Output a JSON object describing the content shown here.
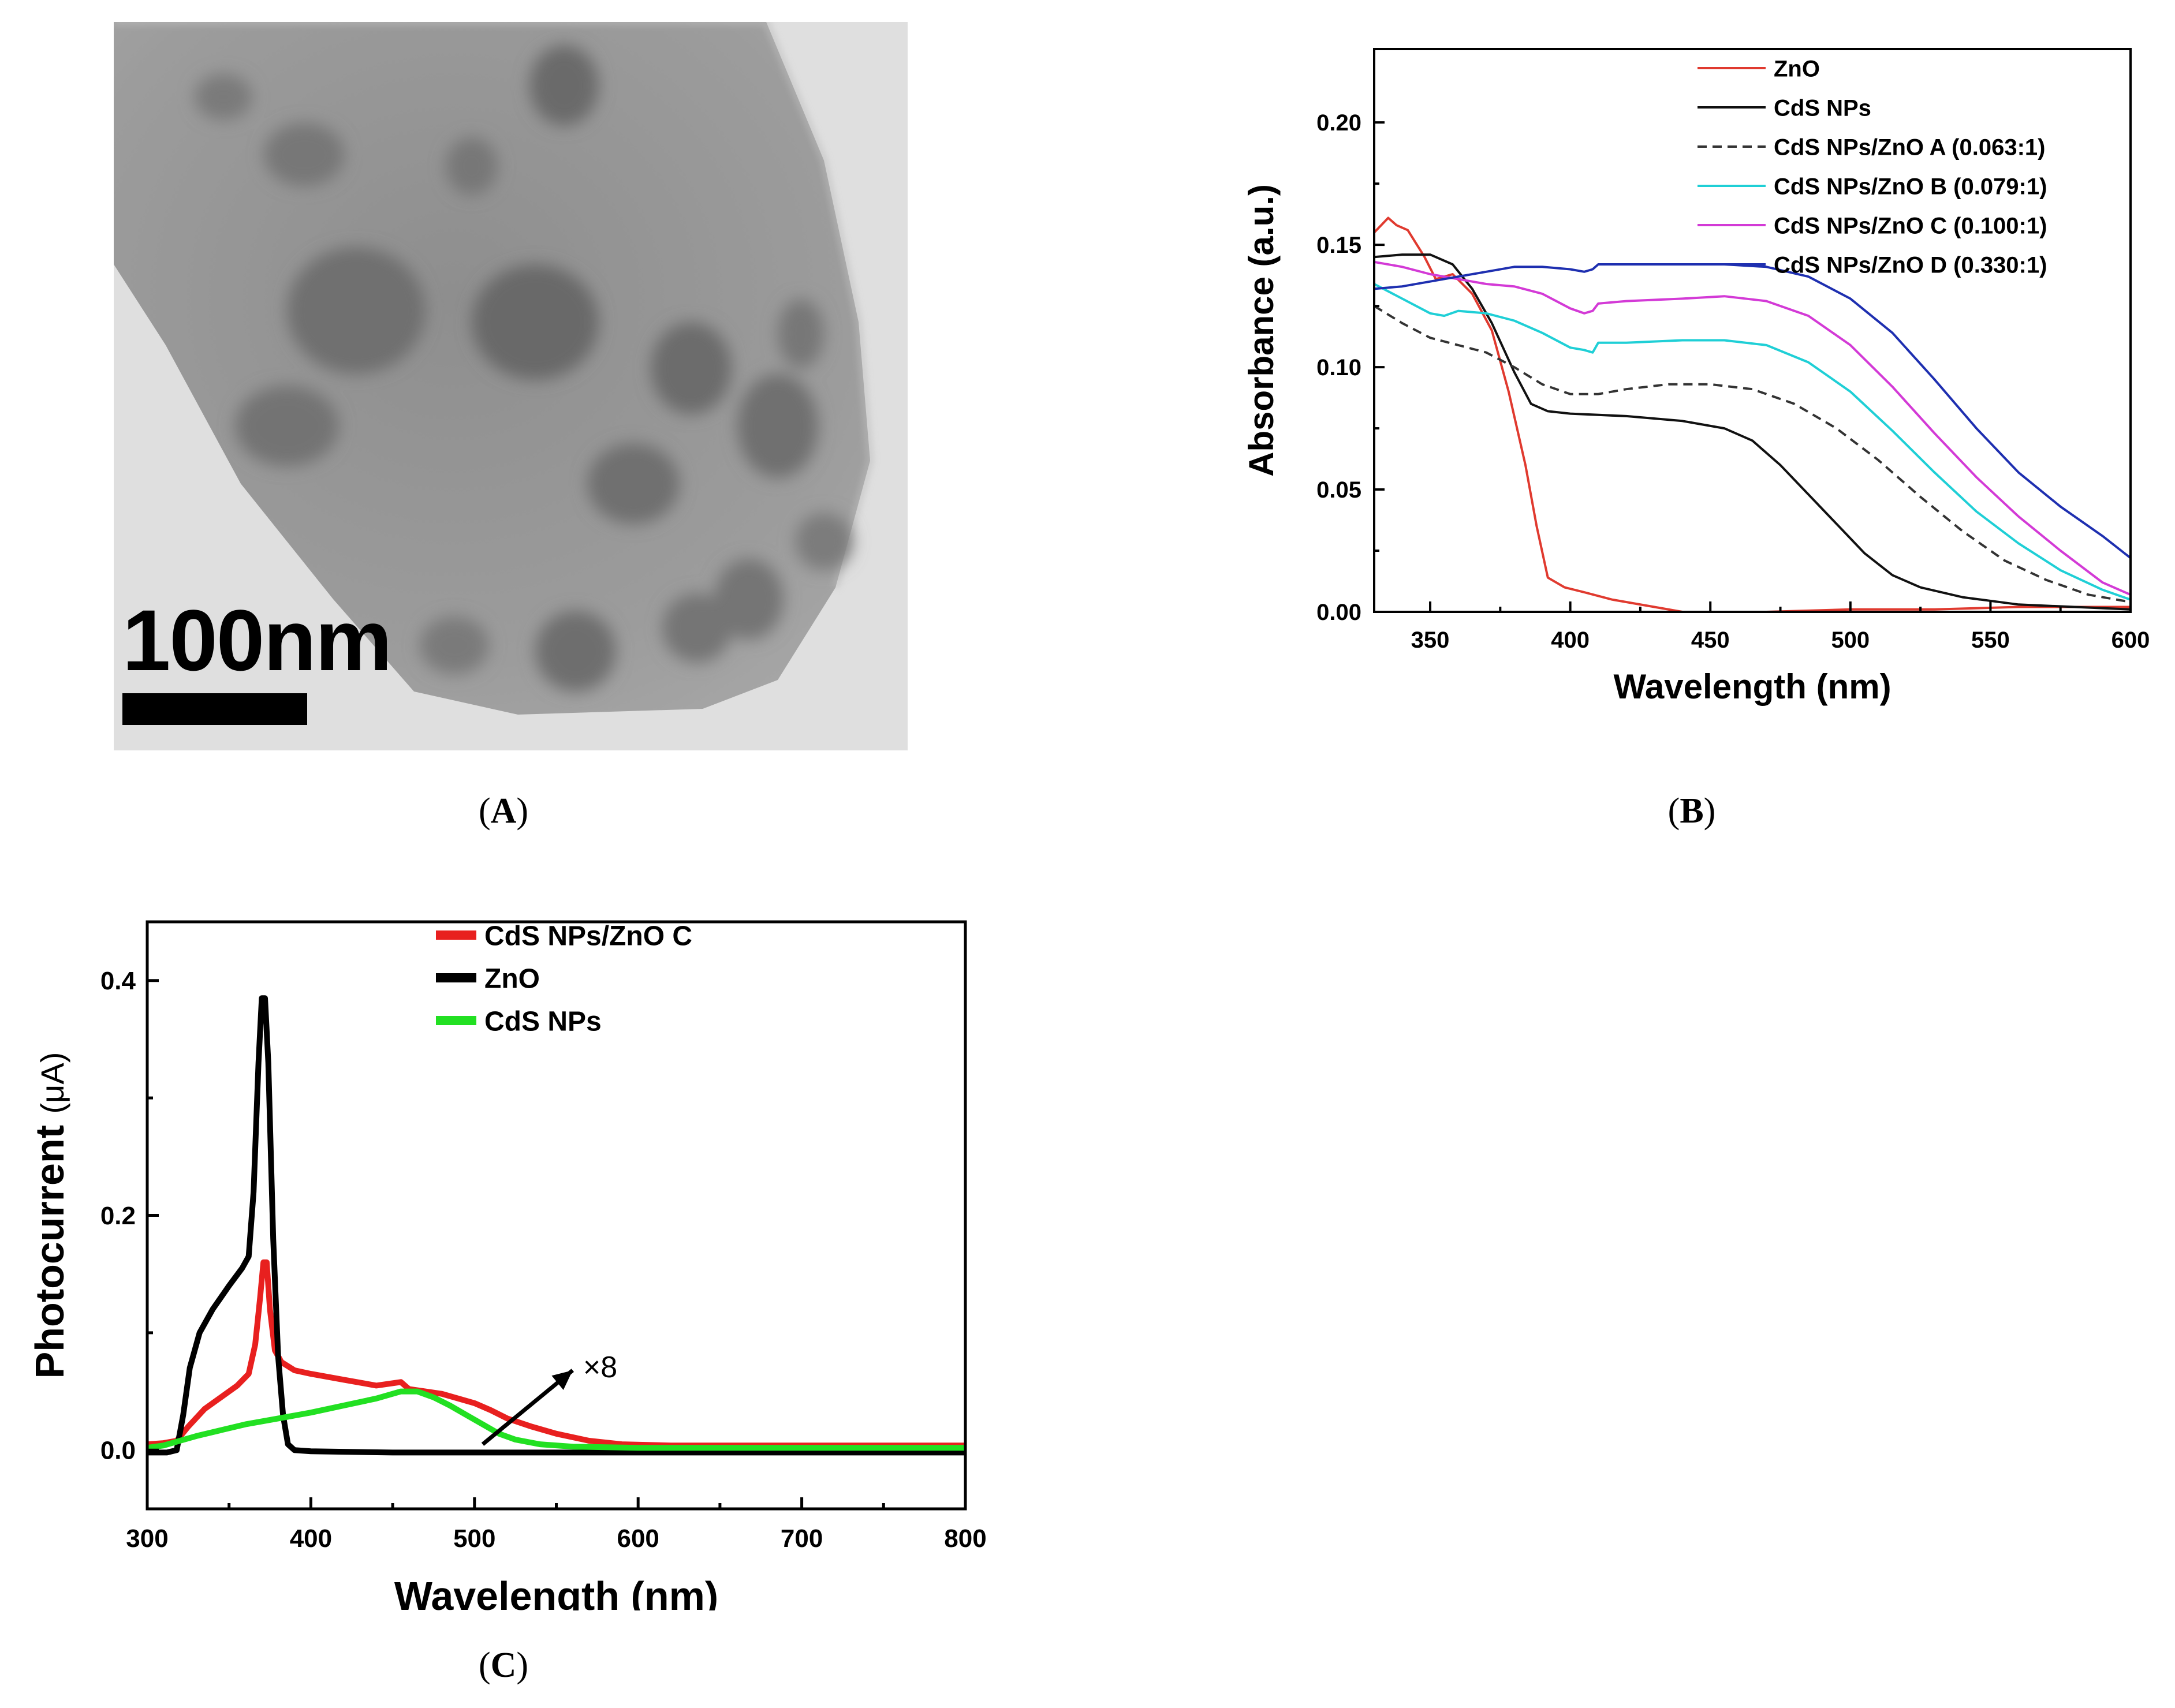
{
  "panels": {
    "A": {
      "caption_letter": "A",
      "scale_bar_label": "100nm"
    },
    "B": {
      "caption_letter": "B"
    },
    "C": {
      "caption_letter": "C"
    }
  },
  "chart_data": [
    {
      "id": "B",
      "type": "line",
      "title": "",
      "xlabel": "Wavelength (nm)",
      "ylabel": "Absorbance (a.u.)",
      "xlim": [
        330,
        600
      ],
      "ylim": [
        0,
        0.23
      ],
      "xticks": [
        350,
        400,
        450,
        500,
        550,
        600
      ],
      "yticks": [
        0.0,
        0.05,
        0.1,
        0.15,
        0.2
      ],
      "ytick_labels": [
        "0.00",
        "0.05",
        "0.10",
        "0.15",
        "0.20"
      ],
      "legend_position": "top-right",
      "series": [
        {
          "name": "ZnO",
          "color": "#e03a2f",
          "dash": false,
          "points": [
            [
              330,
              0.155
            ],
            [
              335,
              0.161
            ],
            [
              338,
              0.158
            ],
            [
              342,
              0.156
            ],
            [
              348,
              0.145
            ],
            [
              352,
              0.136
            ],
            [
              358,
              0.138
            ],
            [
              365,
              0.13
            ],
            [
              372,
              0.115
            ],
            [
              378,
              0.09
            ],
            [
              384,
              0.06
            ],
            [
              388,
              0.035
            ],
            [
              392,
              0.014
            ],
            [
              398,
              0.01
            ],
            [
              405,
              0.008
            ],
            [
              415,
              0.005
            ],
            [
              430,
              0.002
            ],
            [
              440,
              0.0
            ],
            [
              450,
              0.0
            ],
            [
              470,
              0.0
            ],
            [
              500,
              0.001
            ],
            [
              530,
              0.001
            ],
            [
              560,
              0.002
            ],
            [
              600,
              0.002
            ]
          ]
        },
        {
          "name": "CdS NPs",
          "color": "#111111",
          "dash": false,
          "points": [
            [
              330,
              0.145
            ],
            [
              340,
              0.146
            ],
            [
              350,
              0.146
            ],
            [
              358,
              0.142
            ],
            [
              365,
              0.132
            ],
            [
              372,
              0.118
            ],
            [
              380,
              0.098
            ],
            [
              386,
              0.085
            ],
            [
              392,
              0.082
            ],
            [
              400,
              0.081
            ],
            [
              420,
              0.08
            ],
            [
              440,
              0.078
            ],
            [
              455,
              0.075
            ],
            [
              465,
              0.07
            ],
            [
              475,
              0.06
            ],
            [
              485,
              0.048
            ],
            [
              495,
              0.036
            ],
            [
              505,
              0.024
            ],
            [
              515,
              0.015
            ],
            [
              525,
              0.01
            ],
            [
              540,
              0.006
            ],
            [
              560,
              0.003
            ],
            [
              580,
              0.002
            ],
            [
              600,
              0.001
            ]
          ]
        },
        {
          "name": "CdS NPs/ZnO A (0.063:1)",
          "color": "#333333",
          "dash": true,
          "points": [
            [
              330,
              0.125
            ],
            [
              340,
              0.118
            ],
            [
              350,
              0.112
            ],
            [
              360,
              0.109
            ],
            [
              370,
              0.106
            ],
            [
              380,
              0.1
            ],
            [
              390,
              0.093
            ],
            [
              400,
              0.089
            ],
            [
              410,
              0.089
            ],
            [
              420,
              0.091
            ],
            [
              435,
              0.093
            ],
            [
              450,
              0.093
            ],
            [
              465,
              0.091
            ],
            [
              480,
              0.085
            ],
            [
              495,
              0.075
            ],
            [
              510,
              0.062
            ],
            [
              525,
              0.047
            ],
            [
              540,
              0.033
            ],
            [
              555,
              0.021
            ],
            [
              570,
              0.013
            ],
            [
              585,
              0.007
            ],
            [
              600,
              0.004
            ]
          ]
        },
        {
          "name": "CdS NPs/ZnO B (0.079:1)",
          "color": "#1fcfd6",
          "dash": false,
          "points": [
            [
              330,
              0.134
            ],
            [
              340,
              0.128
            ],
            [
              350,
              0.122
            ],
            [
              355,
              0.121
            ],
            [
              360,
              0.123
            ],
            [
              370,
              0.122
            ],
            [
              380,
              0.119
            ],
            [
              390,
              0.114
            ],
            [
              400,
              0.108
            ],
            [
              405,
              0.107
            ],
            [
              408,
              0.106
            ],
            [
              410,
              0.11
            ],
            [
              420,
              0.11
            ],
            [
              440,
              0.111
            ],
            [
              455,
              0.111
            ],
            [
              470,
              0.109
            ],
            [
              485,
              0.102
            ],
            [
              500,
              0.09
            ],
            [
              515,
              0.074
            ],
            [
              530,
              0.057
            ],
            [
              545,
              0.041
            ],
            [
              560,
              0.028
            ],
            [
              575,
              0.017
            ],
            [
              590,
              0.009
            ],
            [
              600,
              0.005
            ]
          ]
        },
        {
          "name": "CdS NPs/ZnO C (0.100:1)",
          "color": "#d33ad6",
          "dash": false,
          "points": [
            [
              330,
              0.143
            ],
            [
              340,
              0.141
            ],
            [
              350,
              0.138
            ],
            [
              360,
              0.136
            ],
            [
              370,
              0.134
            ],
            [
              380,
              0.133
            ],
            [
              390,
              0.13
            ],
            [
              400,
              0.124
            ],
            [
              405,
              0.122
            ],
            [
              408,
              0.123
            ],
            [
              410,
              0.126
            ],
            [
              420,
              0.127
            ],
            [
              440,
              0.128
            ],
            [
              455,
              0.129
            ],
            [
              470,
              0.127
            ],
            [
              485,
              0.121
            ],
            [
              500,
              0.109
            ],
            [
              515,
              0.092
            ],
            [
              530,
              0.073
            ],
            [
              545,
              0.055
            ],
            [
              560,
              0.039
            ],
            [
              575,
              0.025
            ],
            [
              590,
              0.012
            ],
            [
              600,
              0.007
            ]
          ]
        },
        {
          "name": "CdS NPs/ZnO D (0.330:1)",
          "color": "#1e2fb0",
          "dash": false,
          "points": [
            [
              330,
              0.132
            ],
            [
              340,
              0.133
            ],
            [
              350,
              0.135
            ],
            [
              360,
              0.137
            ],
            [
              370,
              0.139
            ],
            [
              380,
              0.141
            ],
            [
              390,
              0.141
            ],
            [
              400,
              0.14
            ],
            [
              405,
              0.139
            ],
            [
              408,
              0.14
            ],
            [
              410,
              0.142
            ],
            [
              420,
              0.142
            ],
            [
              440,
              0.142
            ],
            [
              455,
              0.142
            ],
            [
              470,
              0.141
            ],
            [
              485,
              0.137
            ],
            [
              500,
              0.128
            ],
            [
              515,
              0.114
            ],
            [
              530,
              0.095
            ],
            [
              545,
              0.075
            ],
            [
              560,
              0.057
            ],
            [
              575,
              0.043
            ],
            [
              590,
              0.031
            ],
            [
              600,
              0.022
            ]
          ]
        }
      ]
    },
    {
      "id": "C",
      "type": "line",
      "title": "",
      "xlabel": "Wavelength (nm)",
      "ylabel": "Photocurrent (μA)",
      "ylabel_main": "Photocurrent",
      "ylabel_unit": "(μA)",
      "xlim": [
        300,
        800
      ],
      "ylim": [
        -0.05,
        0.45
      ],
      "xticks": [
        300,
        400,
        500,
        600,
        700,
        800
      ],
      "yticks": [
        0.0,
        0.2,
        0.4
      ],
      "ytick_labels": [
        "0.0",
        "0.2",
        "0.4"
      ],
      "legend_position": "top-left",
      "annotation": {
        "text": "×8",
        "arrow_from": [
          505,
          0.005
        ],
        "arrow_to": [
          560,
          0.068
        ]
      },
      "series": [
        {
          "name": "CdS NPs/ZnO C",
          "color": "#e8201f",
          "points": [
            [
              300,
              0.005
            ],
            [
              310,
              0.006
            ],
            [
              318,
              0.008
            ],
            [
              325,
              0.02
            ],
            [
              335,
              0.035
            ],
            [
              345,
              0.045
            ],
            [
              355,
              0.055
            ],
            [
              362,
              0.065
            ],
            [
              366,
              0.09
            ],
            [
              369,
              0.13
            ],
            [
              371,
              0.16
            ],
            [
              373,
              0.16
            ],
            [
              375,
              0.12
            ],
            [
              378,
              0.085
            ],
            [
              382,
              0.075
            ],
            [
              390,
              0.068
            ],
            [
              400,
              0.065
            ],
            [
              420,
              0.06
            ],
            [
              440,
              0.055
            ],
            [
              455,
              0.058
            ],
            [
              460,
              0.052
            ],
            [
              470,
              0.05
            ],
            [
              480,
              0.048
            ],
            [
              490,
              0.044
            ],
            [
              500,
              0.04
            ],
            [
              510,
              0.034
            ],
            [
              520,
              0.027
            ],
            [
              535,
              0.02
            ],
            [
              550,
              0.014
            ],
            [
              570,
              0.008
            ],
            [
              590,
              0.005
            ],
            [
              620,
              0.004
            ],
            [
              700,
              0.004
            ],
            [
              800,
              0.004
            ]
          ]
        },
        {
          "name": "ZnO",
          "color": "#000000",
          "points": [
            [
              300,
              -0.002
            ],
            [
              312,
              -0.002
            ],
            [
              318,
              0.0
            ],
            [
              322,
              0.03
            ],
            [
              326,
              0.07
            ],
            [
              332,
              0.1
            ],
            [
              340,
              0.12
            ],
            [
              350,
              0.14
            ],
            [
              358,
              0.155
            ],
            [
              362,
              0.165
            ],
            [
              365,
              0.22
            ],
            [
              368,
              0.33
            ],
            [
              370,
              0.385
            ],
            [
              372,
              0.385
            ],
            [
              374,
              0.33
            ],
            [
              377,
              0.18
            ],
            [
              380,
              0.08
            ],
            [
              383,
              0.03
            ],
            [
              386,
              0.005
            ],
            [
              390,
              0.0
            ],
            [
              400,
              -0.001
            ],
            [
              450,
              -0.002
            ],
            [
              600,
              -0.002
            ],
            [
              800,
              -0.002
            ]
          ]
        },
        {
          "name": "CdS NPs",
          "color": "#22e022",
          "points": [
            [
              300,
              0.002
            ],
            [
              310,
              0.004
            ],
            [
              320,
              0.008
            ],
            [
              330,
              0.012
            ],
            [
              345,
              0.017
            ],
            [
              360,
              0.022
            ],
            [
              380,
              0.027
            ],
            [
              400,
              0.032
            ],
            [
              420,
              0.038
            ],
            [
              440,
              0.044
            ],
            [
              455,
              0.05
            ],
            [
              465,
              0.05
            ],
            [
              475,
              0.045
            ],
            [
              485,
              0.038
            ],
            [
              495,
              0.03
            ],
            [
              505,
              0.022
            ],
            [
              515,
              0.014
            ],
            [
              525,
              0.009
            ],
            [
              540,
              0.005
            ],
            [
              560,
              0.003
            ],
            [
              600,
              0.002
            ],
            [
              700,
              0.002
            ],
            [
              800,
              0.002
            ]
          ]
        }
      ]
    }
  ]
}
